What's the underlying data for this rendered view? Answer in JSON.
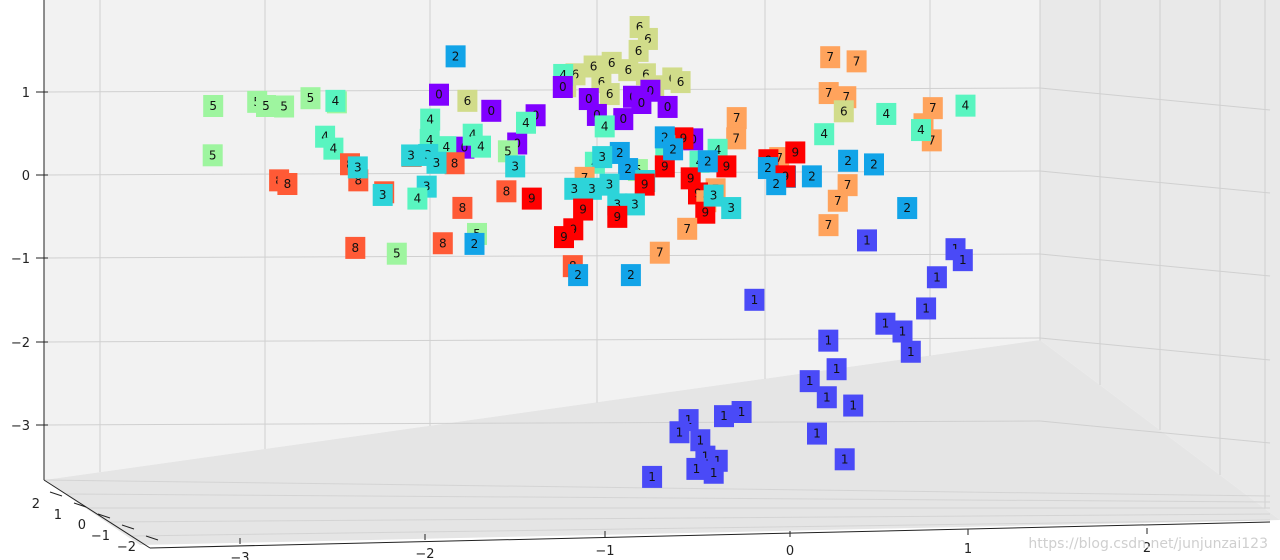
{
  "watermark": "https://blog.csdn.net/junjunzai123",
  "chart_data": {
    "type": "scatter",
    "projection": "3d",
    "grid": true,
    "ticks": {
      "z": [
        "1",
        "0",
        "−1",
        "−2",
        "−3"
      ],
      "x": [
        "−3",
        "−2",
        "−1",
        "0",
        "1",
        "2"
      ],
      "y": [
        "2",
        "1",
        "0",
        "−1",
        "−2"
      ]
    },
    "colors": {
      "0": "#8000ff",
      "1": "#4a4af7",
      "2": "#12a4e8",
      "3": "#2dd4d9",
      "4": "#59f5c0",
      "5": "#9ef59f",
      "6": "#d1dc8a",
      "7": "#ffa35c",
      "8": "#ff5a36",
      "9": "#ff0000"
    },
    "points": [
      {
        "l": "0",
        "x": -0.8,
        "y": 0.62,
        "z": 1.15
      },
      {
        "l": "0",
        "x": -0.9,
        "y": 0.64,
        "z": 1.08
      },
      {
        "l": "0",
        "x": -0.85,
        "y": 0.6,
        "z": 1.0
      },
      {
        "l": "0",
        "x": -0.7,
        "y": 0.58,
        "z": 0.95
      },
      {
        "l": "0",
        "x": -1.3,
        "y": 0.66,
        "z": 1.2
      },
      {
        "l": "0",
        "x": -1.15,
        "y": 0.62,
        "z": 1.05
      },
      {
        "l": "0",
        "x": -1.1,
        "y": 0.55,
        "z": 0.85
      },
      {
        "l": "0",
        "x": -0.95,
        "y": 0.55,
        "z": 0.8
      },
      {
        "l": "0",
        "x": -0.55,
        "y": 0.5,
        "z": 0.55
      },
      {
        "l": "0",
        "x": -2.0,
        "y": 0.6,
        "z": 1.1
      },
      {
        "l": "0",
        "x": -1.7,
        "y": 0.55,
        "z": 0.9
      },
      {
        "l": "0",
        "x": -1.45,
        "y": 0.58,
        "z": 0.85
      },
      {
        "l": "0",
        "x": -1.55,
        "y": 0.5,
        "z": 0.5
      },
      {
        "l": "0",
        "x": -1.85,
        "y": 0.5,
        "z": 0.45
      },
      {
        "l": "1",
        "x": 0.5,
        "y": -0.6,
        "z": -0.8
      },
      {
        "l": "1",
        "x": 1.0,
        "y": -0.55,
        "z": -0.9
      },
      {
        "l": "1",
        "x": 1.05,
        "y": -0.7,
        "z": -1.05
      },
      {
        "l": "1",
        "x": 0.9,
        "y": -0.65,
        "z": -1.25
      },
      {
        "l": "1",
        "x": 0.85,
        "y": -0.85,
        "z": -1.65
      },
      {
        "l": "1",
        "x": 0.3,
        "y": -0.95,
        "z": -2.05
      },
      {
        "l": "1",
        "x": 0.35,
        "y": -1.0,
        "z": -2.4
      },
      {
        "l": "1",
        "x": 0.2,
        "y": -1.05,
        "z": -2.55
      },
      {
        "l": "1",
        "x": 0.3,
        "y": -1.1,
        "z": -2.75
      },
      {
        "l": "1",
        "x": 0.45,
        "y": -1.1,
        "z": -2.85
      },
      {
        "l": "1",
        "x": 0.25,
        "y": -1.2,
        "z": -3.2
      },
      {
        "l": "1",
        "x": -0.1,
        "y": -1.3,
        "z": -1.6
      },
      {
        "l": "1",
        "x": -0.15,
        "y": -1.7,
        "z": -3.0
      },
      {
        "l": "1",
        "x": -0.25,
        "y": -1.7,
        "z": -3.05
      },
      {
        "l": "1",
        "x": -0.45,
        "y": -1.72,
        "z": -3.1
      },
      {
        "l": "1",
        "x": -0.5,
        "y": -1.75,
        "z": -3.25
      },
      {
        "l": "1",
        "x": -0.38,
        "y": -1.78,
        "z": -3.35
      },
      {
        "l": "1",
        "x": -0.35,
        "y": -1.8,
        "z": -3.55
      },
      {
        "l": "1",
        "x": -0.28,
        "y": -1.8,
        "z": -3.6
      },
      {
        "l": "1",
        "x": -0.4,
        "y": -1.82,
        "z": -3.7
      },
      {
        "l": "1",
        "x": -0.3,
        "y": -1.85,
        "z": -3.75
      },
      {
        "l": "1",
        "x": -0.65,
        "y": -1.85,
        "z": -3.8
      },
      {
        "l": "1",
        "x": 0.45,
        "y": -1.95,
        "z": -3.6
      },
      {
        "l": "1",
        "x": 0.65,
        "y": -1.4,
        "z": -1.9
      },
      {
        "l": "1",
        "x": 0.75,
        "y": -1.45,
        "z": -2.0
      },
      {
        "l": "1",
        "x": 0.8,
        "y": -1.5,
        "z": -2.25
      },
      {
        "l": "2",
        "x": -1.9,
        "y": 0.5,
        "z": 1.55
      },
      {
        "l": "2",
        "x": -0.95,
        "y": 0.2,
        "z": 0.35
      },
      {
        "l": "2",
        "x": -0.9,
        "y": 0.15,
        "z": 0.15
      },
      {
        "l": "2",
        "x": -0.7,
        "y": 0.3,
        "z": 0.55
      },
      {
        "l": "2",
        "x": -0.65,
        "y": 0.25,
        "z": 0.4
      },
      {
        "l": "2",
        "x": -0.45,
        "y": 0.2,
        "z": 0.25
      },
      {
        "l": "2",
        "x": -0.1,
        "y": 0.05,
        "z": 0.15
      },
      {
        "l": "2",
        "x": 0.0,
        "y": 0.1,
        "z": 0.05
      },
      {
        "l": "2",
        "x": -0.05,
        "y": 0.0,
        "z": -0.05
      },
      {
        "l": "2",
        "x": 0.35,
        "y": 0.15,
        "z": 0.25
      },
      {
        "l": "2",
        "x": 0.5,
        "y": 0.1,
        "z": 0.2
      },
      {
        "l": "2",
        "x": 0.15,
        "y": 0.05,
        "z": 0.05
      },
      {
        "l": "2",
        "x": 0.7,
        "y": -0.1,
        "z": -0.35
      },
      {
        "l": "2",
        "x": -1.75,
        "y": -0.25,
        "z": -0.8
      },
      {
        "l": "2",
        "x": -1.15,
        "y": -0.45,
        "z": -1.2
      },
      {
        "l": "2",
        "x": -0.85,
        "y": -0.45,
        "z": -1.2
      },
      {
        "l": "3",
        "x": -2.45,
        "y": 0.4,
        "z": 0.2
      },
      {
        "l": "3",
        "x": -2.15,
        "y": 0.45,
        "z": 0.35
      },
      {
        "l": "3",
        "x": -2.05,
        "y": 0.4,
        "z": 0.35
      },
      {
        "l": "3",
        "x": -2.0,
        "y": 0.35,
        "z": 0.25
      },
      {
        "l": "3",
        "x": -2.05,
        "y": 0.25,
        "z": -0.05
      },
      {
        "l": "3",
        "x": -2.3,
        "y": 0.25,
        "z": -0.15
      },
      {
        "l": "3",
        "x": -1.55,
        "y": 0.3,
        "z": 0.2
      },
      {
        "l": "3",
        "x": -1.05,
        "y": 0.2,
        "z": 0.3
      },
      {
        "l": "3",
        "x": -1.2,
        "y": 0.05,
        "z": -0.1
      },
      {
        "l": "3",
        "x": -1.1,
        "y": 0.05,
        "z": -0.1
      },
      {
        "l": "3",
        "x": -1.0,
        "y": 0.05,
        "z": -0.05
      },
      {
        "l": "3",
        "x": -0.8,
        "y": 0.1,
        "z": 0.0
      },
      {
        "l": "3",
        "x": -0.95,
        "y": -0.05,
        "z": -0.3
      },
      {
        "l": "3",
        "x": -0.85,
        "y": -0.05,
        "z": -0.3
      },
      {
        "l": "3",
        "x": -0.4,
        "y": -0.1,
        "z": -0.2
      },
      {
        "l": "3",
        "x": -0.3,
        "y": -0.1,
        "z": -0.35
      },
      {
        "l": "4",
        "x": -2.6,
        "y": 0.8,
        "z": 1.05
      },
      {
        "l": "4",
        "x": -2.65,
        "y": 0.65,
        "z": 0.6
      },
      {
        "l": "4",
        "x": -2.6,
        "y": 0.6,
        "z": 0.45
      },
      {
        "l": "4",
        "x": -2.05,
        "y": 0.6,
        "z": 0.8
      },
      {
        "l": "4",
        "x": -2.05,
        "y": 0.55,
        "z": 0.55
      },
      {
        "l": "4",
        "x": -1.95,
        "y": 0.45,
        "z": 0.45
      },
      {
        "l": "4",
        "x": -1.8,
        "y": 0.45,
        "z": 0.6
      },
      {
        "l": "4",
        "x": -1.75,
        "y": 0.4,
        "z": 0.45
      },
      {
        "l": "4",
        "x": -1.5,
        "y": 0.5,
        "z": 0.75
      },
      {
        "l": "4",
        "x": -1.05,
        "y": 0.45,
        "z": 0.7
      },
      {
        "l": "4",
        "x": -1.1,
        "y": 0.35,
        "z": 0.25
      },
      {
        "l": "4",
        "x": -0.7,
        "y": 0.35,
        "z": 0.45
      },
      {
        "l": "4",
        "x": -2.1,
        "y": 0.2,
        "z": -0.2
      },
      {
        "l": "4",
        "x": -0.4,
        "y": 0.3,
        "z": 0.4
      },
      {
        "l": "4",
        "x": -0.5,
        "y": 0.25,
        "z": 0.25
      },
      {
        "l": "4",
        "x": 0.2,
        "y": 0.4,
        "z": 0.6
      },
      {
        "l": "4",
        "x": 0.55,
        "y": 0.45,
        "z": 0.85
      },
      {
        "l": "4",
        "x": 0.75,
        "y": 0.4,
        "z": 0.65
      },
      {
        "l": "4",
        "x": 1.0,
        "y": 0.45,
        "z": 0.95
      },
      {
        "l": "4",
        "x": -1.3,
        "y": 0.7,
        "z": 1.35
      },
      {
        "l": "5",
        "x": -3.3,
        "y": 0.9,
        "z": 1.0
      },
      {
        "l": "5",
        "x": -3.3,
        "y": 0.85,
        "z": 0.4
      },
      {
        "l": "5",
        "x": -3.05,
        "y": 0.9,
        "z": 1.05
      },
      {
        "l": "5",
        "x": -3.0,
        "y": 0.9,
        "z": 1.0
      },
      {
        "l": "5",
        "x": -2.9,
        "y": 0.95,
        "z": 1.0
      },
      {
        "l": "5",
        "x": -2.75,
        "y": 0.95,
        "z": 1.1
      },
      {
        "l": "5",
        "x": -2.6,
        "y": 0.95,
        "z": 1.05
      },
      {
        "l": "5",
        "x": -1.6,
        "y": 0.45,
        "z": 0.4
      },
      {
        "l": "5",
        "x": -0.85,
        "y": 0.25,
        "z": 0.15
      },
      {
        "l": "5",
        "x": -2.2,
        "y": -0.1,
        "z": -0.9
      },
      {
        "l": "5",
        "x": -1.75,
        "y": 0.0,
        "z": -0.65
      },
      {
        "l": "6",
        "x": -0.9,
        "y": 1.3,
        "z": 2.0
      },
      {
        "l": "6",
        "x": -0.85,
        "y": 1.25,
        "z": 1.85
      },
      {
        "l": "6",
        "x": -0.9,
        "y": 1.2,
        "z": 1.7
      },
      {
        "l": "6",
        "x": -1.05,
        "y": 1.15,
        "z": 1.55
      },
      {
        "l": "6",
        "x": -1.15,
        "y": 1.1,
        "z": 1.5
      },
      {
        "l": "6",
        "x": -0.95,
        "y": 1.05,
        "z": 1.45
      },
      {
        "l": "6",
        "x": -1.1,
        "y": 1.0,
        "z": 1.3
      },
      {
        "l": "6",
        "x": -0.85,
        "y": 1.05,
        "z": 1.4
      },
      {
        "l": "6",
        "x": -0.8,
        "y": 1.0,
        "z": 1.25
      },
      {
        "l": "6",
        "x": -0.7,
        "y": 1.05,
        "z": 1.35
      },
      {
        "l": "6",
        "x": -0.65,
        "y": 1.0,
        "z": 1.3
      },
      {
        "l": "6",
        "x": -1.25,
        "y": 1.05,
        "z": 1.4
      },
      {
        "l": "6",
        "x": -1.3,
        "y": 1.0,
        "z": 1.25
      },
      {
        "l": "6",
        "x": -1.05,
        "y": 0.95,
        "z": 1.15
      },
      {
        "l": "6",
        "x": -1.85,
        "y": 0.8,
        "z": 1.05
      },
      {
        "l": "6",
        "x": 0.3,
        "y": 0.6,
        "z": 0.9
      },
      {
        "l": "7",
        "x": 0.2,
        "y": 1.0,
        "z": 1.6
      },
      {
        "l": "7",
        "x": 0.35,
        "y": 1.0,
        "z": 1.55
      },
      {
        "l": "7",
        "x": 0.2,
        "y": 0.85,
        "z": 1.15
      },
      {
        "l": "7",
        "x": 0.3,
        "y": 0.85,
        "z": 1.1
      },
      {
        "l": "7",
        "x": 0.8,
        "y": 0.7,
        "z": 0.95
      },
      {
        "l": "7",
        "x": 0.75,
        "y": 0.65,
        "z": 0.75
      },
      {
        "l": "7",
        "x": 0.8,
        "y": 0.6,
        "z": 0.55
      },
      {
        "l": "7",
        "x": -0.3,
        "y": 0.45,
        "z": 0.8
      },
      {
        "l": "7",
        "x": -0.3,
        "y": 0.4,
        "z": 0.55
      },
      {
        "l": "7",
        "x": -0.05,
        "y": 0.3,
        "z": 0.3
      },
      {
        "l": "7",
        "x": -1.15,
        "y": 0.2,
        "z": 0.05
      },
      {
        "l": "7",
        "x": -0.4,
        "y": 0.1,
        "z": -0.1
      },
      {
        "l": "7",
        "x": -0.45,
        "y": 0.05,
        "z": -0.25
      },
      {
        "l": "7",
        "x": 0.35,
        "y": 0.1,
        "z": -0.05
      },
      {
        "l": "7",
        "x": 0.3,
        "y": 0.0,
        "z": -0.25
      },
      {
        "l": "7",
        "x": 0.25,
        "y": -0.05,
        "z": -0.55
      },
      {
        "l": "7",
        "x": -0.55,
        "y": -0.1,
        "z": -0.6
      },
      {
        "l": "7",
        "x": -0.7,
        "y": -0.2,
        "z": -0.9
      },
      {
        "l": "8",
        "x": -2.9,
        "y": 0.45,
        "z": 0.05
      },
      {
        "l": "8",
        "x": -2.85,
        "y": 0.4,
        "z": 0.0
      },
      {
        "l": "8",
        "x": -2.5,
        "y": 0.5,
        "z": 0.25
      },
      {
        "l": "8",
        "x": -2.45,
        "y": 0.45,
        "z": 0.05
      },
      {
        "l": "8",
        "x": -2.3,
        "y": 0.4,
        "z": -0.1
      },
      {
        "l": "8",
        "x": -2.15,
        "y": 0.5,
        "z": 0.35
      },
      {
        "l": "8",
        "x": -1.9,
        "y": 0.4,
        "z": 0.25
      },
      {
        "l": "8",
        "x": -1.85,
        "y": 0.3,
        "z": -0.3
      },
      {
        "l": "8",
        "x": -1.6,
        "y": 0.3,
        "z": -0.1
      },
      {
        "l": "8",
        "x": -2.45,
        "y": 0.15,
        "z": -0.8
      },
      {
        "l": "8",
        "x": -1.95,
        "y": 0.1,
        "z": -0.75
      },
      {
        "l": "8",
        "x": -1.2,
        "y": -0.1,
        "z": -1.05
      },
      {
        "l": "9",
        "x": -0.6,
        "y": 0.4,
        "z": 0.55
      },
      {
        "l": "9",
        "x": -0.7,
        "y": 0.3,
        "z": 0.2
      },
      {
        "l": "9",
        "x": -0.55,
        "y": 0.25,
        "z": 0.05
      },
      {
        "l": "9",
        "x": -0.35,
        "y": 0.3,
        "z": 0.2
      },
      {
        "l": "9",
        "x": -0.5,
        "y": 0.1,
        "z": -0.15
      },
      {
        "l": "9",
        "x": -0.8,
        "y": 0.05,
        "z": -0.05
      },
      {
        "l": "9",
        "x": -1.45,
        "y": 0.2,
        "z": -0.2
      },
      {
        "l": "9",
        "x": -1.15,
        "y": 0.05,
        "z": -0.35
      },
      {
        "l": "9",
        "x": -1.2,
        "y": -0.05,
        "z": -0.6
      },
      {
        "l": "9",
        "x": -1.25,
        "y": -0.1,
        "z": -0.7
      },
      {
        "l": "9",
        "x": -0.95,
        "y": -0.05,
        "z": -0.45
      },
      {
        "l": "9",
        "x": -0.45,
        "y": -0.05,
        "z": -0.4
      },
      {
        "l": "9",
        "x": 0.05,
        "y": 0.15,
        "z": 0.35
      },
      {
        "l": "9",
        "x": 0.0,
        "y": 0.05,
        "z": 0.05
      },
      {
        "l": "9",
        "x": -0.1,
        "y": 0.1,
        "z": 0.25
      }
    ]
  }
}
